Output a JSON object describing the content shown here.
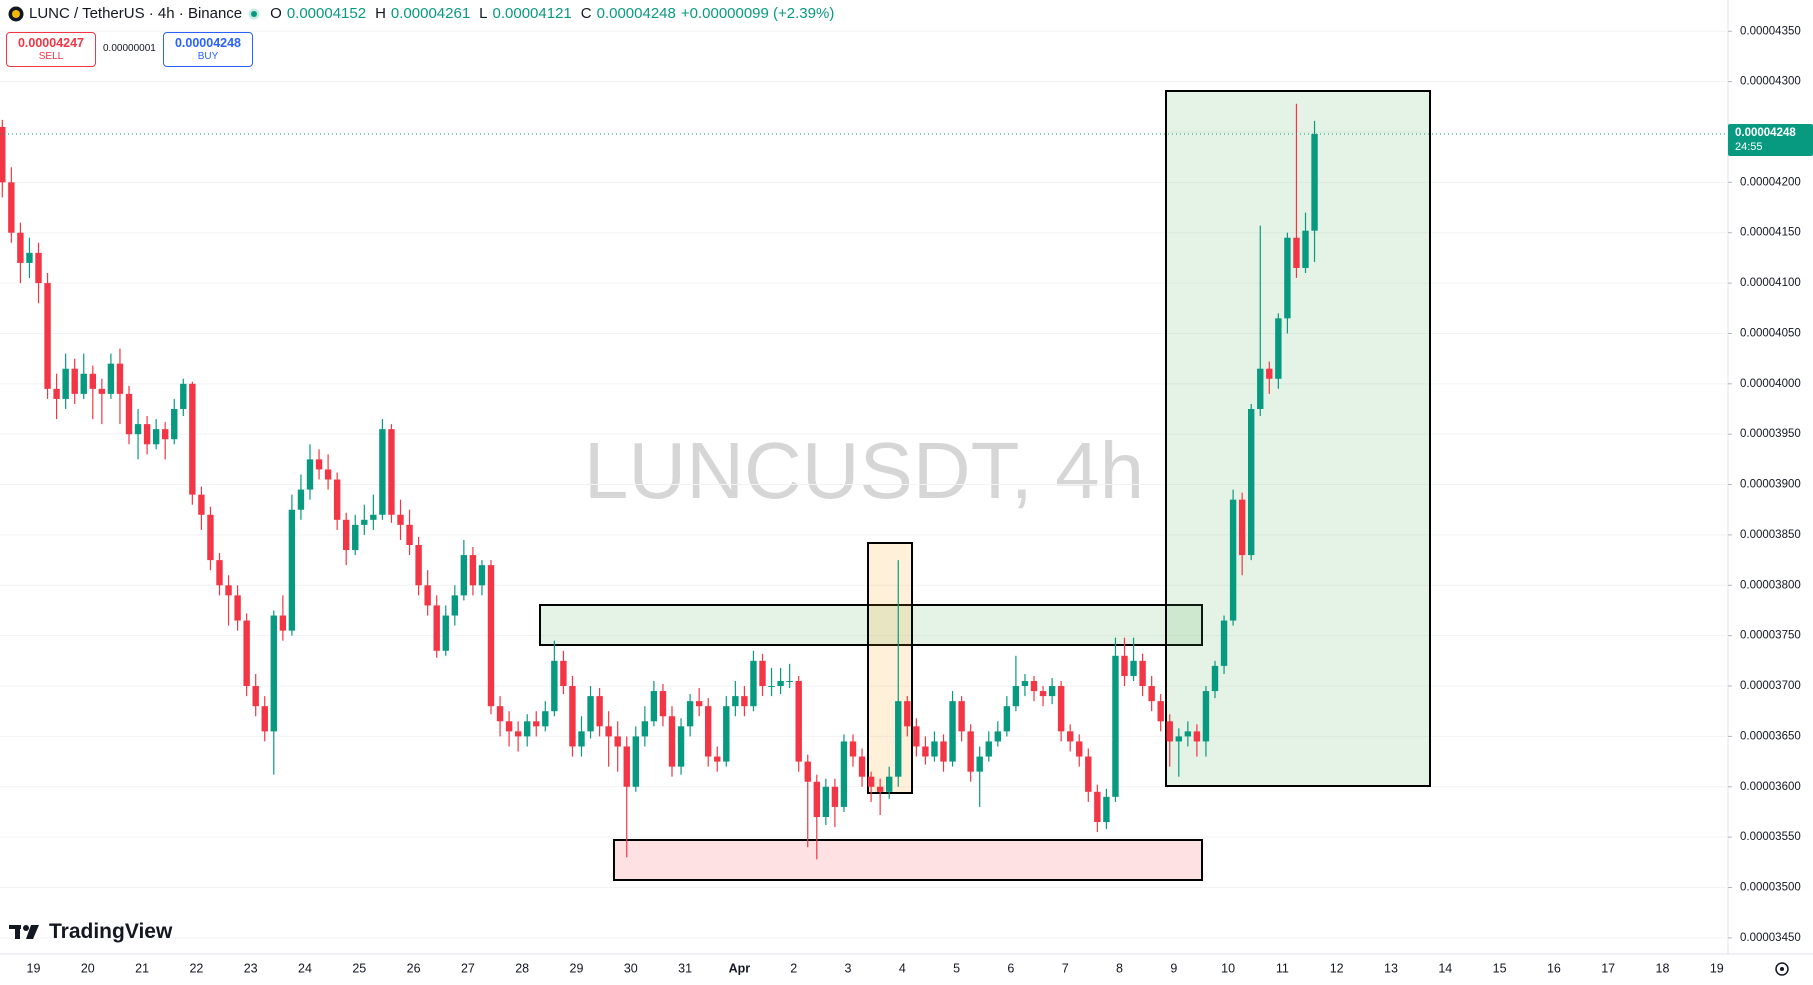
{
  "header": {
    "symbol": "LUNC / TetherUS · 4h · Binance",
    "o_label": "O",
    "o": "0.00004152",
    "h_label": "H",
    "h": "0.00004261",
    "l_label": "L",
    "l": "0.00004121",
    "c_label": "C",
    "c": "0.00004248",
    "change": "+0.00000099 (+2.39%)",
    "sell_price": "0.00004247",
    "sell_label": "SELL",
    "spread": "0.00000001",
    "buy_price": "0.00004248",
    "buy_label": "BUY",
    "brand": "TradingView"
  },
  "chart_data": {
    "type": "candlestick",
    "watermark": "LUNCUSDT, 4h",
    "up_color": "#089981",
    "down_color": "#f23645",
    "grid": true,
    "ylim": [
      3.434e-05,
      4.381e-05
    ],
    "yticks": [
      {
        "value": 3.45e-05,
        "label": "0.00003450"
      },
      {
        "value": 3.5e-05,
        "label": "0.00003500"
      },
      {
        "value": 3.55e-05,
        "label": "0.00003550"
      },
      {
        "value": 3.6e-05,
        "label": "0.00003600"
      },
      {
        "value": 3.65e-05,
        "label": "0.00003650"
      },
      {
        "value": 3.7e-05,
        "label": "0.00003700"
      },
      {
        "value": 3.75e-05,
        "label": "0.00003750"
      },
      {
        "value": 3.8e-05,
        "label": "0.00003800"
      },
      {
        "value": 3.85e-05,
        "label": "0.00003850"
      },
      {
        "value": 3.9e-05,
        "label": "0.00003900"
      },
      {
        "value": 3.95e-05,
        "label": "0.00003950"
      },
      {
        "value": 4e-05,
        "label": "0.00004000"
      },
      {
        "value": 4.05e-05,
        "label": "0.00004050"
      },
      {
        "value": 4.1e-05,
        "label": "0.00004100"
      },
      {
        "value": 4.15e-05,
        "label": "0.00004150"
      },
      {
        "value": 4.2e-05,
        "label": "0.00004200"
      },
      {
        "value": 4.25e-05,
        "label": "0.00004250"
      },
      {
        "value": 4.3e-05,
        "label": "0.00004300"
      },
      {
        "value": 4.35e-05,
        "label": "0.00004350"
      }
    ],
    "xticklabels": [
      "19",
      "20",
      "21",
      "22",
      "23",
      "24",
      "25",
      "26",
      "27",
      "28",
      "29",
      "30",
      "31",
      "Apr",
      "2",
      "3",
      "4",
      "5",
      "6",
      "7",
      "8",
      "9",
      "10",
      "11",
      "12",
      "13",
      "14",
      "15",
      "16",
      "17",
      "18",
      "19"
    ],
    "price_tag": {
      "price": "0.00004248",
      "countdown": "24:55"
    },
    "ohlc": [
      [
        4.255e-05,
        4.262e-05,
        4.185e-05,
        4.2e-05
      ],
      [
        4.2e-05,
        4.215e-05,
        4.14e-05,
        4.15e-05
      ],
      [
        4.15e-05,
        4.16e-05,
        4.1e-05,
        4.12e-05
      ],
      [
        4.12e-05,
        4.145e-05,
        4.105e-05,
        4.13e-05
      ],
      [
        4.13e-05,
        4.14e-05,
        4.08e-05,
        4.1e-05
      ],
      [
        4.1e-05,
        4.11e-05,
        3.985e-05,
        3.995e-05
      ],
      [
        3.995e-05,
        4.01e-05,
        3.965e-05,
        3.985e-05
      ],
      [
        3.985e-05,
        4.03e-05,
        3.975e-05,
        4.015e-05
      ],
      [
        4.015e-05,
        4.025e-05,
        3.98e-05,
        3.99e-05
      ],
      [
        3.99e-05,
        4.03e-05,
        3.985e-05,
        4.01e-05
      ],
      [
        4.01e-05,
        4.018e-05,
        3.965e-05,
        3.995e-05
      ],
      [
        3.995e-05,
        4.005e-05,
        3.96e-05,
        3.99e-05
      ],
      [
        3.99e-05,
        4.03e-05,
        3.985e-05,
        4.02e-05
      ],
      [
        4.02e-05,
        4.035e-05,
        3.96e-05,
        3.99e-05
      ],
      [
        3.99e-05,
        3.998e-05,
        3.94e-05,
        3.95e-05
      ],
      [
        3.95e-05,
        3.975e-05,
        3.925e-05,
        3.96e-05
      ],
      [
        3.96e-05,
        3.968e-05,
        3.93e-05,
        3.94e-05
      ],
      [
        3.94e-05,
        3.965e-05,
        3.935e-05,
        3.955e-05
      ],
      [
        3.955e-05,
        3.962e-05,
        3.925e-05,
        3.945e-05
      ],
      [
        3.945e-05,
        3.985e-05,
        3.94e-05,
        3.975e-05
      ],
      [
        3.975e-05,
        4.005e-05,
        3.968e-05,
        4e-05
      ],
      [
        4e-05,
        4.002e-05,
        3.88e-05,
        3.89e-05
      ],
      [
        3.89e-05,
        3.898e-05,
        3.855e-05,
        3.87e-05
      ],
      [
        3.87e-05,
        3.878e-05,
        3.815e-05,
        3.825e-05
      ],
      [
        3.825e-05,
        3.832e-05,
        3.79e-05,
        3.8e-05
      ],
      [
        3.8e-05,
        3.81e-05,
        3.76e-05,
        3.79e-05
      ],
      [
        3.79e-05,
        3.8e-05,
        3.755e-05,
        3.765e-05
      ],
      [
        3.765e-05,
        3.772e-05,
        3.69e-05,
        3.7e-05
      ],
      [
        3.7e-05,
        3.712e-05,
        3.67e-05,
        3.68e-05
      ],
      [
        3.68e-05,
        3.69e-05,
        3.645e-05,
        3.655e-05
      ],
      [
        3.655e-05,
        3.775e-05,
        3.612e-05,
        3.77e-05
      ],
      [
        3.77e-05,
        3.79e-05,
        3.745e-05,
        3.755e-05
      ],
      [
        3.755e-05,
        3.89e-05,
        3.75e-05,
        3.875e-05
      ],
      [
        3.875e-05,
        3.91e-05,
        3.865e-05,
        3.895e-05
      ],
      [
        3.895e-05,
        3.94e-05,
        3.885e-05,
        3.925e-05
      ],
      [
        3.925e-05,
        3.935e-05,
        3.905e-05,
        3.915e-05
      ],
      [
        3.915e-05,
        3.93e-05,
        3.895e-05,
        3.905e-05
      ],
      [
        3.905e-05,
        3.912e-05,
        3.855e-05,
        3.865e-05
      ],
      [
        3.865e-05,
        3.872e-05,
        3.82e-05,
        3.835e-05
      ],
      [
        3.835e-05,
        3.87e-05,
        3.83e-05,
        3.86e-05
      ],
      [
        3.86e-05,
        3.88e-05,
        3.85e-05,
        3.865e-05
      ],
      [
        3.865e-05,
        3.89e-05,
        3.855e-05,
        3.87e-05
      ],
      [
        3.87e-05,
        3.965e-05,
        3.865e-05,
        3.955e-05
      ],
      [
        3.955e-05,
        3.96e-05,
        3.862e-05,
        3.87e-05
      ],
      [
        3.87e-05,
        3.885e-05,
        3.845e-05,
        3.86e-05
      ],
      [
        3.86e-05,
        3.875e-05,
        3.83e-05,
        3.84e-05
      ],
      [
        3.84e-05,
        3.848e-05,
        3.79e-05,
        3.8e-05
      ],
      [
        3.8e-05,
        3.815e-05,
        3.77e-05,
        3.78e-05
      ],
      [
        3.78e-05,
        3.79e-05,
        3.728e-05,
        3.735e-05
      ],
      [
        3.735e-05,
        3.78e-05,
        3.73e-05,
        3.77e-05
      ],
      [
        3.77e-05,
        3.8e-05,
        3.76e-05,
        3.79e-05
      ],
      [
        3.79e-05,
        3.845e-05,
        3.785e-05,
        3.83e-05
      ],
      [
        3.83e-05,
        3.838e-05,
        3.79e-05,
        3.8e-05
      ],
      [
        3.8e-05,
        3.825e-05,
        3.79e-05,
        3.82e-05
      ],
      [
        3.82e-05,
        3.825e-05,
        3.672e-05,
        3.68e-05
      ],
      [
        3.68e-05,
        3.69e-05,
        3.65e-05,
        3.665e-05
      ],
      [
        3.665e-05,
        3.675e-05,
        3.64e-05,
        3.655e-05
      ],
      [
        3.655e-05,
        3.665e-05,
        3.635e-05,
        3.65e-05
      ],
      [
        3.65e-05,
        3.672e-05,
        3.64e-05,
        3.665e-05
      ],
      [
        3.665e-05,
        3.675e-05,
        3.65e-05,
        3.66e-05
      ],
      [
        3.66e-05,
        3.685e-05,
        3.655e-05,
        3.675e-05
      ],
      [
        3.675e-05,
        3.745e-05,
        3.67e-05,
        3.725e-05
      ],
      [
        3.725e-05,
        3.735e-05,
        3.692e-05,
        3.7e-05
      ],
      [
        3.7e-05,
        3.71e-05,
        3.63e-05,
        3.64e-05
      ],
      [
        3.64e-05,
        3.67e-05,
        3.63e-05,
        3.655e-05
      ],
      [
        3.655e-05,
        3.7e-05,
        3.648e-05,
        3.69e-05
      ],
      [
        3.69e-05,
        3.698e-05,
        3.65e-05,
        3.66e-05
      ],
      [
        3.66e-05,
        3.675e-05,
        3.62e-05,
        3.65e-05
      ],
      [
        3.65e-05,
        3.665e-05,
        3.615e-05,
        3.64e-05
      ],
      [
        3.64e-05,
        3.65e-05,
        3.53e-05,
        3.6e-05
      ],
      [
        3.6e-05,
        3.66e-05,
        3.595e-05,
        3.65e-05
      ],
      [
        3.65e-05,
        3.68e-05,
        3.64e-05,
        3.665e-05
      ],
      [
        3.665e-05,
        3.705e-05,
        3.66e-05,
        3.695e-05
      ],
      [
        3.695e-05,
        3.702e-05,
        3.66e-05,
        3.67e-05
      ],
      [
        3.67e-05,
        3.68e-05,
        3.61e-05,
        3.62e-05
      ],
      [
        3.62e-05,
        3.668e-05,
        3.612e-05,
        3.66e-05
      ],
      [
        3.66e-05,
        3.692e-05,
        3.65e-05,
        3.685e-05
      ],
      [
        3.685e-05,
        3.698e-05,
        3.67e-05,
        3.68e-05
      ],
      [
        3.68e-05,
        3.688e-05,
        3.62e-05,
        3.63e-05
      ],
      [
        3.63e-05,
        3.64e-05,
        3.615e-05,
        3.625e-05
      ],
      [
        3.625e-05,
        3.69e-05,
        3.62e-05,
        3.68e-05
      ],
      [
        3.68e-05,
        3.705e-05,
        3.67e-05,
        3.69e-05
      ],
      [
        3.69e-05,
        3.7e-05,
        3.67e-05,
        3.68e-05
      ],
      [
        3.68e-05,
        3.735e-05,
        3.675e-05,
        3.725e-05
      ],
      [
        3.725e-05,
        3.732e-05,
        3.69e-05,
        3.7e-05
      ],
      [
        3.7e-05,
        3.718e-05,
        3.69e-05,
        3.7e-05
      ],
      [
        3.7e-05,
        3.718e-05,
        3.692e-05,
        3.705e-05
      ],
      [
        3.705e-05,
        3.722e-05,
        3.698e-05,
        3.705e-05
      ],
      [
        3.705e-05,
        3.71e-05,
        3.615e-05,
        3.625e-05
      ],
      [
        3.625e-05,
        3.632e-05,
        3.54e-05,
        3.605e-05
      ],
      [
        3.605e-05,
        3.612e-05,
        3.528e-05,
        3.57e-05
      ],
      [
        3.57e-05,
        3.608e-05,
        3.562e-05,
        3.6e-05
      ],
      [
        3.6e-05,
        3.608e-05,
        3.56e-05,
        3.58e-05
      ],
      [
        3.58e-05,
        3.652e-05,
        3.575e-05,
        3.645e-05
      ],
      [
        3.645e-05,
        3.652e-05,
        3.62e-05,
        3.63e-05
      ],
      [
        3.63e-05,
        3.638e-05,
        3.6e-05,
        3.61e-05
      ],
      [
        3.61e-05,
        3.615e-05,
        3.585e-05,
        3.6e-05
      ],
      [
        3.6e-05,
        3.608e-05,
        3.572e-05,
        3.595e-05
      ],
      [
        3.595e-05,
        3.62e-05,
        3.588e-05,
        3.61e-05
      ],
      [
        3.61e-05,
        3.825e-05,
        3.6e-05,
        3.685e-05
      ],
      [
        3.685e-05,
        3.69e-05,
        3.65e-05,
        3.66e-05
      ],
      [
        3.66e-05,
        3.668e-05,
        3.63e-05,
        3.64e-05
      ],
      [
        3.64e-05,
        3.65e-05,
        3.622e-05,
        3.63e-05
      ],
      [
        3.63e-05,
        3.655e-05,
        3.625e-05,
        3.645e-05
      ],
      [
        3.645e-05,
        3.652e-05,
        3.615e-05,
        3.625e-05
      ],
      [
        3.625e-05,
        3.695e-05,
        3.62e-05,
        3.685e-05
      ],
      [
        3.685e-05,
        3.69e-05,
        3.645e-05,
        3.655e-05
      ],
      [
        3.655e-05,
        3.662e-05,
        3.605e-05,
        3.615e-05
      ],
      [
        3.615e-05,
        3.64e-05,
        3.58e-05,
        3.63e-05
      ],
      [
        3.63e-05,
        3.655e-05,
        3.625e-05,
        3.645e-05
      ],
      [
        3.645e-05,
        3.665e-05,
        3.64e-05,
        3.655e-05
      ],
      [
        3.655e-05,
        3.69e-05,
        3.65e-05,
        3.68e-05
      ],
      [
        3.68e-05,
        3.73e-05,
        3.675e-05,
        3.7e-05
      ],
      [
        3.7e-05,
        3.712e-05,
        3.69e-05,
        3.705e-05
      ],
      [
        3.705e-05,
        3.71e-05,
        3.685e-05,
        3.695e-05
      ],
      [
        3.695e-05,
        3.7e-05,
        3.68e-05,
        3.69e-05
      ],
      [
        3.69e-05,
        3.708e-05,
        3.682e-05,
        3.7e-05
      ],
      [
        3.7e-05,
        3.705e-05,
        3.645e-05,
        3.655e-05
      ],
      [
        3.655e-05,
        3.662e-05,
        3.635e-05,
        3.645e-05
      ],
      [
        3.645e-05,
        3.652e-05,
        3.62e-05,
        3.63e-05
      ],
      [
        3.63e-05,
        3.638e-05,
        3.585e-05,
        3.595e-05
      ],
      [
        3.595e-05,
        3.602e-05,
        3.555e-05,
        3.565e-05
      ],
      [
        3.565e-05,
        3.598e-05,
        3.558e-05,
        3.59e-05
      ],
      [
        3.59e-05,
        3.748e-05,
        3.585e-05,
        3.73e-05
      ],
      [
        3.73e-05,
        3.748e-05,
        3.7e-05,
        3.71e-05
      ],
      [
        3.71e-05,
        3.748e-05,
        3.705e-05,
        3.725e-05
      ],
      [
        3.725e-05,
        3.732e-05,
        3.69e-05,
        3.7e-05
      ],
      [
        3.7e-05,
        3.71e-05,
        3.675e-05,
        3.685e-05
      ],
      [
        3.685e-05,
        3.692e-05,
        3.655e-05,
        3.665e-05
      ],
      [
        3.665e-05,
        3.672e-05,
        3.62e-05,
        3.645e-05
      ],
      [
        3.645e-05,
        3.658e-05,
        3.61e-05,
        3.65e-05
      ],
      [
        3.65e-05,
        3.665e-05,
        3.64e-05,
        3.655e-05
      ],
      [
        3.655e-05,
        3.662e-05,
        3.63e-05,
        3.645e-05
      ],
      [
        3.645e-05,
        3.7e-05,
        3.63e-05,
        3.695e-05
      ],
      [
        3.695e-05,
        3.725e-05,
        3.688e-05,
        3.72e-05
      ],
      [
        3.72e-05,
        3.77e-05,
        3.712e-05,
        3.765e-05
      ],
      [
        3.765e-05,
        3.895e-05,
        3.76e-05,
        3.885e-05
      ],
      [
        3.885e-05,
        3.892e-05,
        3.81e-05,
        3.83e-05
      ],
      [
        3.83e-05,
        3.98e-05,
        3.825e-05,
        3.975e-05
      ],
      [
        3.975e-05,
        4.157e-05,
        3.968e-05,
        4.015e-05
      ],
      [
        4.015e-05,
        4.022e-05,
        3.99e-05,
        4.005e-05
      ],
      [
        4.005e-05,
        4.07e-05,
        3.995e-05,
        4.065e-05
      ],
      [
        4.065e-05,
        4.15e-05,
        4.05e-05,
        4.145e-05
      ],
      [
        4.145e-05,
        4.278e-05,
        4.105e-05,
        4.115e-05
      ],
      [
        4.115e-05,
        4.17e-05,
        4.11e-05,
        4.152e-05
      ],
      [
        4.152e-05,
        4.261e-05,
        4.121e-05,
        4.248e-05
      ]
    ]
  }
}
